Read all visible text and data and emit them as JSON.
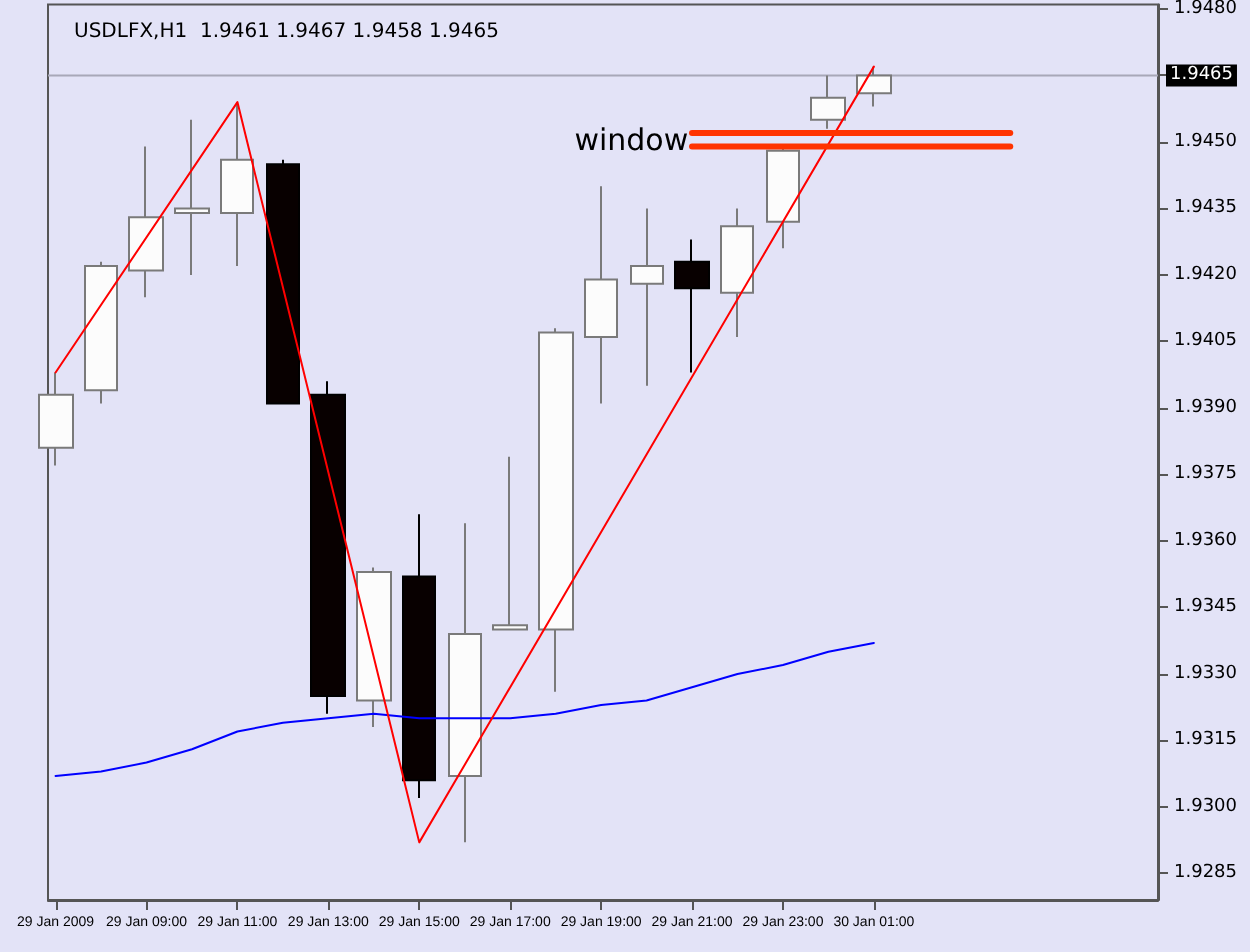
{
  "chart_data": {
    "type": "candlestick",
    "title": "USDLFX,H1  1.9461 1.9467 1.9458 1.9465",
    "x": [
      "2009-01-29T07:00",
      "2009-01-29T08:00",
      "2009-01-29T09:00",
      "2009-01-29T10:00",
      "2009-01-29T11:00",
      "2009-01-29T12:00",
      "2009-01-29T13:00",
      "2009-01-29T14:00",
      "2009-01-29T15:00",
      "2009-01-29T16:00",
      "2009-01-29T17:00",
      "2009-01-29T18:00",
      "2009-01-29T19:00",
      "2009-01-29T20:00",
      "2009-01-29T21:00",
      "2009-01-29T22:00",
      "2009-01-29T23:00",
      "2009-01-30T00:00",
      "2009-01-30T01:00"
    ],
    "ohlc": [
      [
        1.9381,
        1.9398,
        1.9377,
        1.9393
      ],
      [
        1.9394,
        1.9423,
        1.9391,
        1.9422
      ],
      [
        1.9421,
        1.9449,
        1.9415,
        1.9433
      ],
      [
        1.9434,
        1.9455,
        1.942,
        1.9435
      ],
      [
        1.9434,
        1.9459,
        1.9422,
        1.9446
      ],
      [
        1.9445,
        1.9446,
        1.9391,
        1.9391
      ],
      [
        1.9393,
        1.9396,
        1.9321,
        1.9325
      ],
      [
        1.9324,
        1.9354,
        1.9318,
        1.9353
      ],
      [
        1.9352,
        1.9366,
        1.9302,
        1.9306
      ],
      [
        1.9307,
        1.9364,
        1.9292,
        1.9339
      ],
      [
        1.934,
        1.9379,
        1.934,
        1.9341
      ],
      [
        1.934,
        1.9408,
        1.9326,
        1.9407
      ],
      [
        1.9406,
        1.944,
        1.9391,
        1.9419
      ],
      [
        1.9418,
        1.9435,
        1.9395,
        1.9422
      ],
      [
        1.9423,
        1.9428,
        1.9398,
        1.9417
      ],
      [
        1.9416,
        1.9435,
        1.9406,
        1.9431
      ],
      [
        1.9432,
        1.9449,
        1.9426,
        1.9448
      ],
      [
        1.9455,
        1.9465,
        1.9453,
        1.946
      ],
      [
        1.9461,
        1.9467,
        1.9458,
        1.9465
      ]
    ],
    "series": [
      {
        "type": "line",
        "color": "#0000ff",
        "x": [
          "2009-01-29T07:00",
          "2009-01-29T08:00",
          "2009-01-29T09:00",
          "2009-01-29T10:00",
          "2009-01-29T11:00",
          "2009-01-29T12:00",
          "2009-01-29T13:00",
          "2009-01-29T14:00",
          "2009-01-29T15:00",
          "2009-01-29T16:00",
          "2009-01-29T17:00",
          "2009-01-29T18:00",
          "2009-01-29T19:00",
          "2009-01-29T20:00",
          "2009-01-29T21:00",
          "2009-01-29T22:00",
          "2009-01-29T23:00",
          "2009-01-30T00:00",
          "2009-01-30T01:00"
        ],
        "values": [
          1.9307,
          1.9308,
          1.931,
          1.9313,
          1.9317,
          1.9319,
          1.932,
          1.9321,
          1.932,
          1.932,
          1.932,
          1.9321,
          1.9323,
          1.9324,
          1.9327,
          1.933,
          1.9332,
          1.9335,
          1.9337
        ]
      },
      {
        "type": "line",
        "color": "#ff0000",
        "x": [
          "2009-01-29T07:00",
          "2009-01-29T11:00",
          "2009-01-29T15:00",
          "2009-01-30T01:00"
        ],
        "values": [
          1.9398,
          1.9459,
          1.9292,
          1.9467
        ]
      },
      {
        "type": "line",
        "color": "#ff3300",
        "x": [
          "2009-01-29T21:00",
          "2009-01-30T04:00"
        ],
        "values": [
          1.9452,
          1.9452
        ]
      },
      {
        "type": "line",
        "color": "#ff3300",
        "x": [
          "2009-01-29T21:00",
          "2009-01-30T04:00"
        ],
        "values": [
          1.9449,
          1.9449
        ]
      }
    ],
    "annotations": [
      {
        "text": "window",
        "x": "2009-01-29T20:55",
        "y": 1.94505
      }
    ],
    "ref_lines": [
      {
        "axis": "y",
        "value": 1.9465,
        "label": "1.9465",
        "color": "#a8a8b8"
      }
    ],
    "xlim": [
      "2009-01-29T06:50",
      "2009-01-30T07:15"
    ],
    "xticks": [
      {
        "value": "2009-01-29T07:00",
        "label": "29 Jan 2009"
      },
      {
        "value": "2009-01-29T09:00",
        "label": "29 Jan 09:00"
      },
      {
        "value": "2009-01-29T11:00",
        "label": "29 Jan 11:00"
      },
      {
        "value": "2009-01-29T13:00",
        "label": "29 Jan 13:00"
      },
      {
        "value": "2009-01-29T15:00",
        "label": "29 Jan 15:00"
      },
      {
        "value": "2009-01-29T17:00",
        "label": "29 Jan 17:00"
      },
      {
        "value": "2009-01-29T19:00",
        "label": "29 Jan 19:00"
      },
      {
        "value": "2009-01-29T21:00",
        "label": "29 Jan 21:00"
      },
      {
        "value": "2009-01-29T23:00",
        "label": "29 Jan 23:00"
      },
      {
        "value": "2009-01-30T01:00",
        "label": "30 Jan 01:00"
      }
    ],
    "ylim": [
      1.9279,
      1.9481
    ],
    "yticks": [
      1.9285,
      {
        "value": 1.93,
        "label": "1.9300"
      },
      1.9315,
      {
        "value": 1.933,
        "label": "1.9330"
      },
      1.9345,
      {
        "value": 1.936,
        "label": "1.9360"
      },
      1.9375,
      {
        "value": 1.939,
        "label": "1.9390"
      },
      1.9405,
      {
        "value": 1.942,
        "label": "1.9420"
      },
      1.9435,
      {
        "value": 1.945,
        "label": "1.9450"
      },
      1.9465,
      {
        "value": 1.948,
        "label": "1.9480"
      }
    ],
    "grid": false,
    "marker": "none",
    "line_style": "solid"
  }
}
